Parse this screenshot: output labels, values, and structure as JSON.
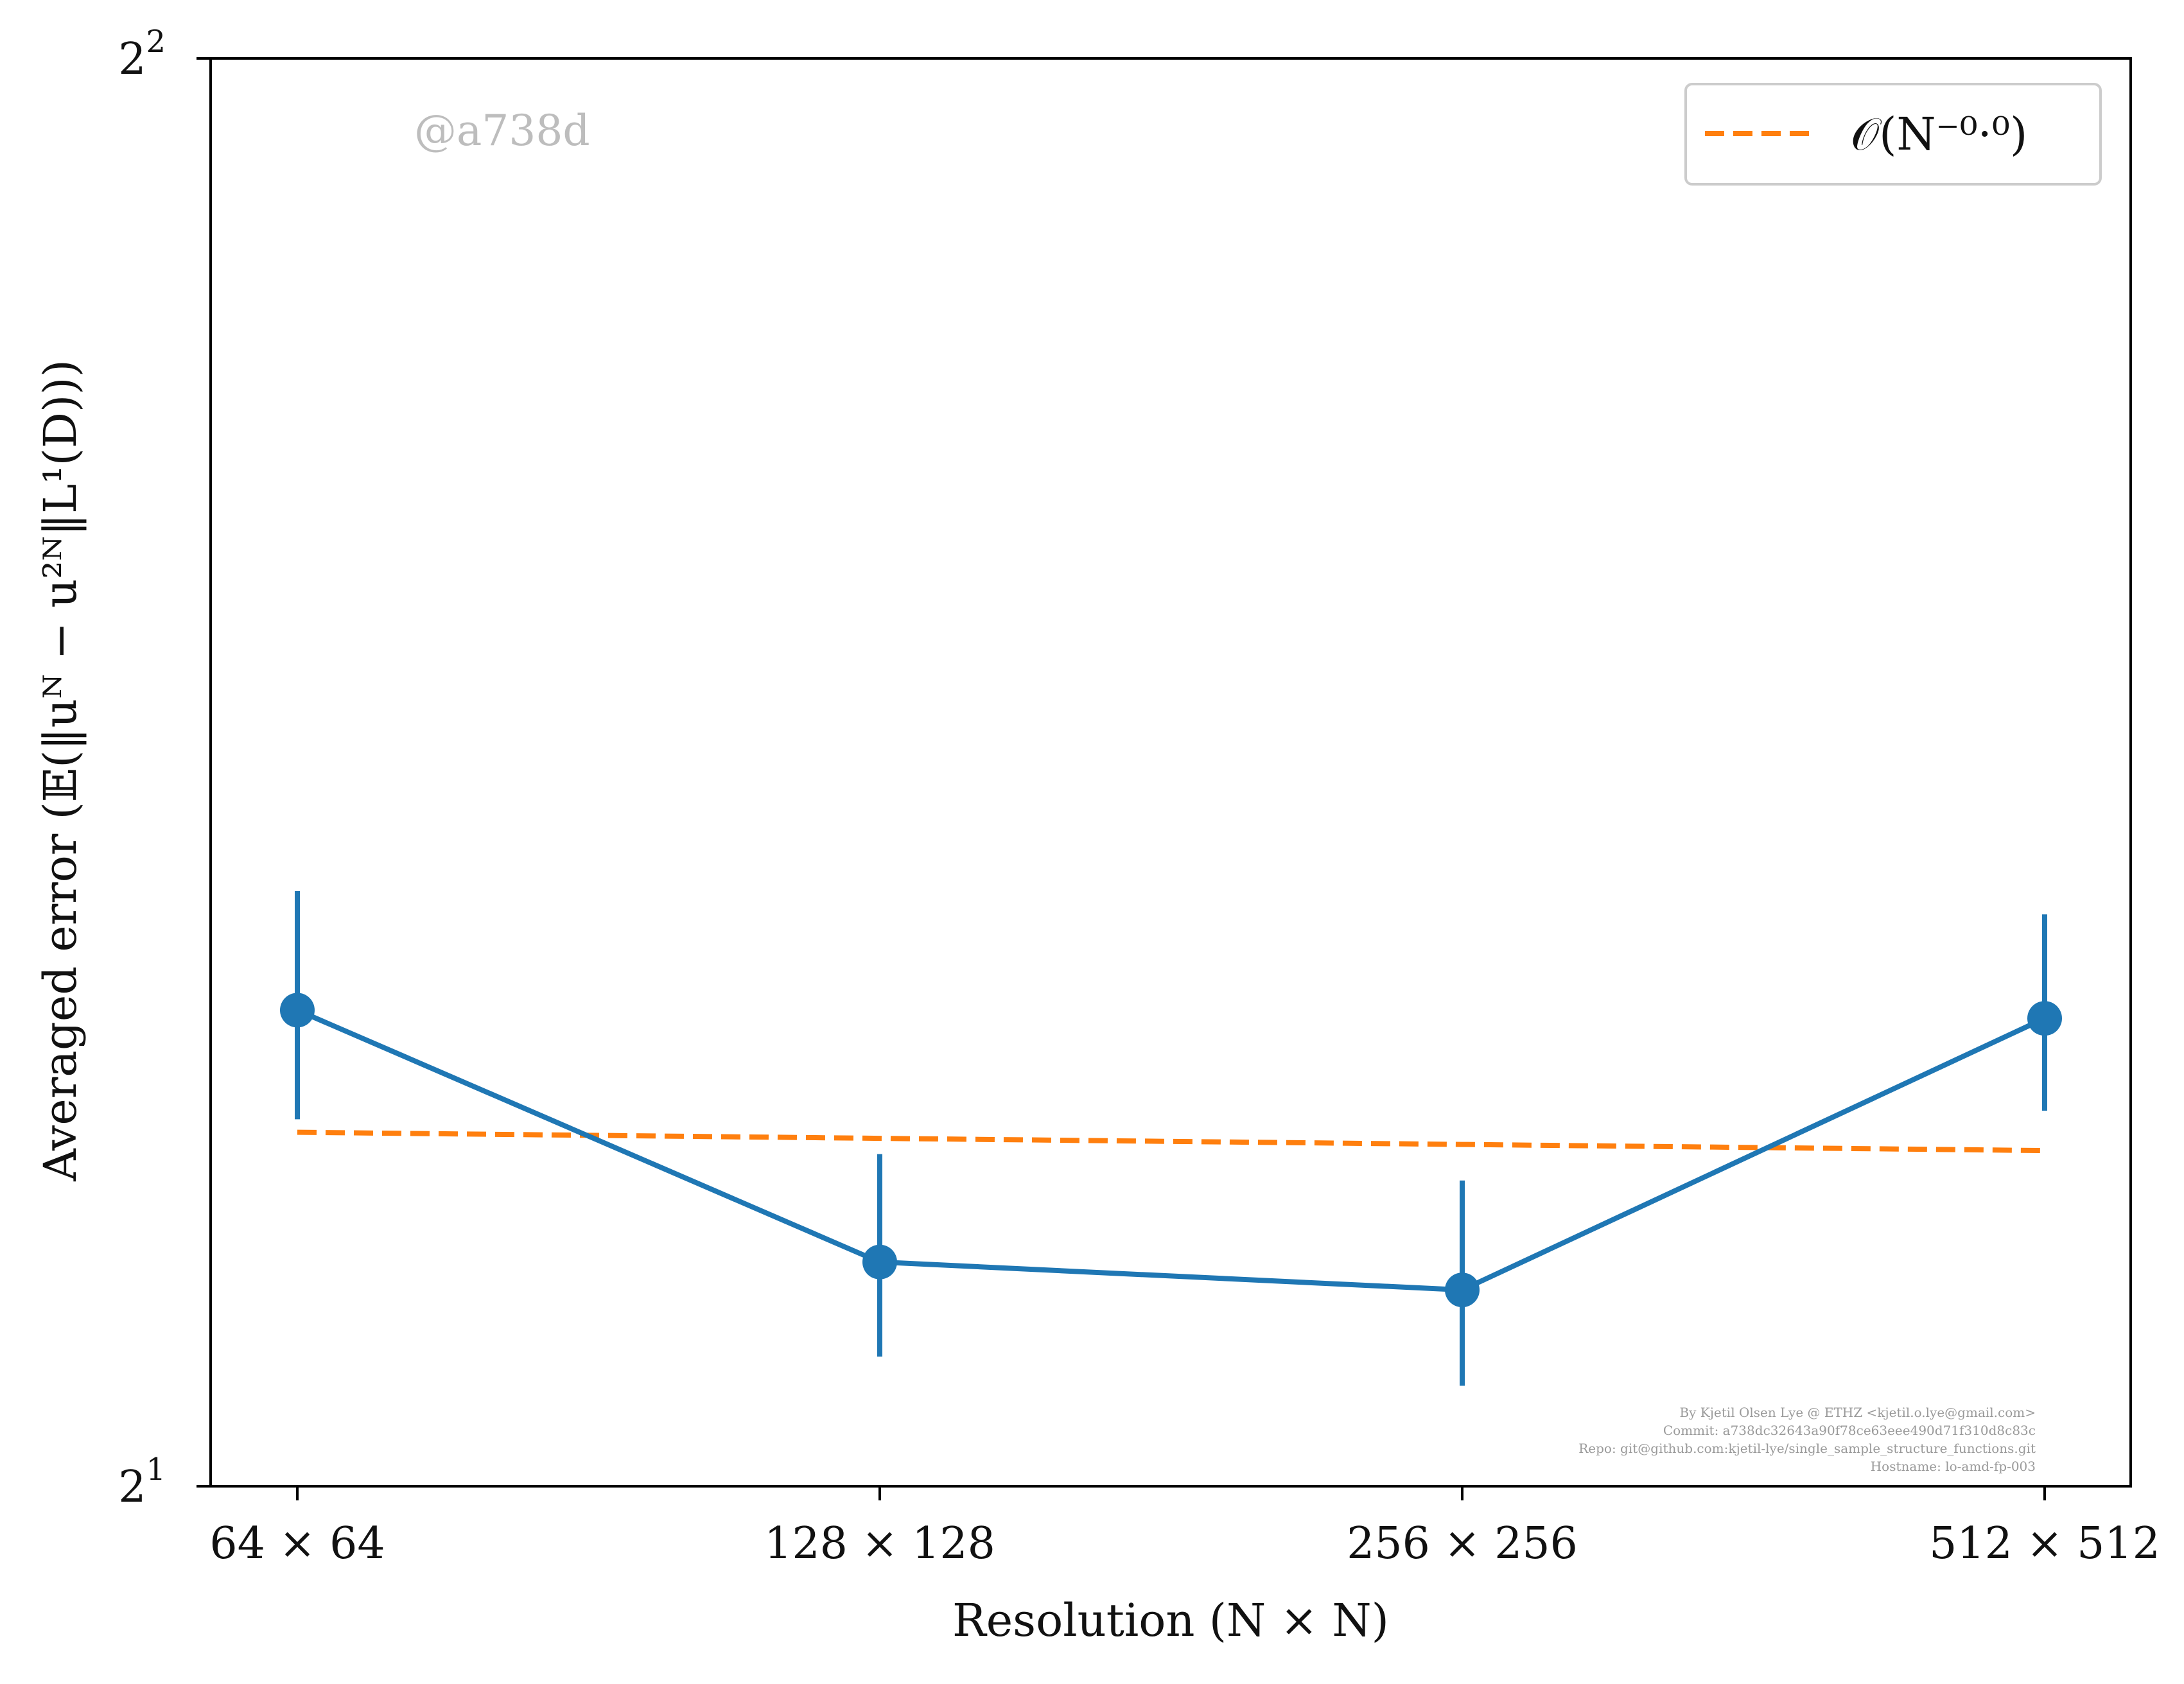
{
  "chart_data": {
    "type": "line",
    "categories": [
      "64 × 64",
      "128 × 128",
      "256 × 256",
      "512 × 512"
    ],
    "x": [
      64,
      128,
      256,
      512
    ],
    "xscale": "log2",
    "yscale": "log2",
    "ylim": [
      2,
      4
    ],
    "yticks": [
      {
        "value": 2,
        "base": "2",
        "exp": "1"
      },
      {
        "value": 4,
        "base": "2",
        "exp": "2"
      }
    ],
    "xlabel": "Resolution (N × N)",
    "ylabel": "Averaged error (𝔼(‖uᴺ − u²ᴺ‖L¹(D)))",
    "series": [
      {
        "values": [
          2.52,
          2.23,
          2.2,
          2.51
        ],
        "error_low": [
          2.39,
          2.13,
          2.1,
          2.4
        ],
        "error_high": [
          2.67,
          2.35,
          2.32,
          2.64
        ],
        "color": "#1f77b4",
        "style": "solid",
        "marker": "circle"
      },
      {
        "name": "𝒪(N⁻⁰·⁰)",
        "values": [
          2.375,
          2.368,
          2.361,
          2.354
        ],
        "color": "#ff7f0e",
        "style": "dashed",
        "marker": "none"
      }
    ],
    "legend": {
      "placement": "top-right"
    },
    "grid": false
  },
  "annotations": {
    "watermark": "@a738d",
    "footer_lines": [
      "By Kjetil Olsen Lye @ ETHZ <kjetil.o.lye@gmail.com>",
      "Commit: a738dc32643a90f78ce63eee490d71f310d8c83c",
      "Repo: git@github.com:kjetil-lye/single_sample_structure_functions.git",
      "Hostname: lo-amd-fp-003"
    ]
  }
}
